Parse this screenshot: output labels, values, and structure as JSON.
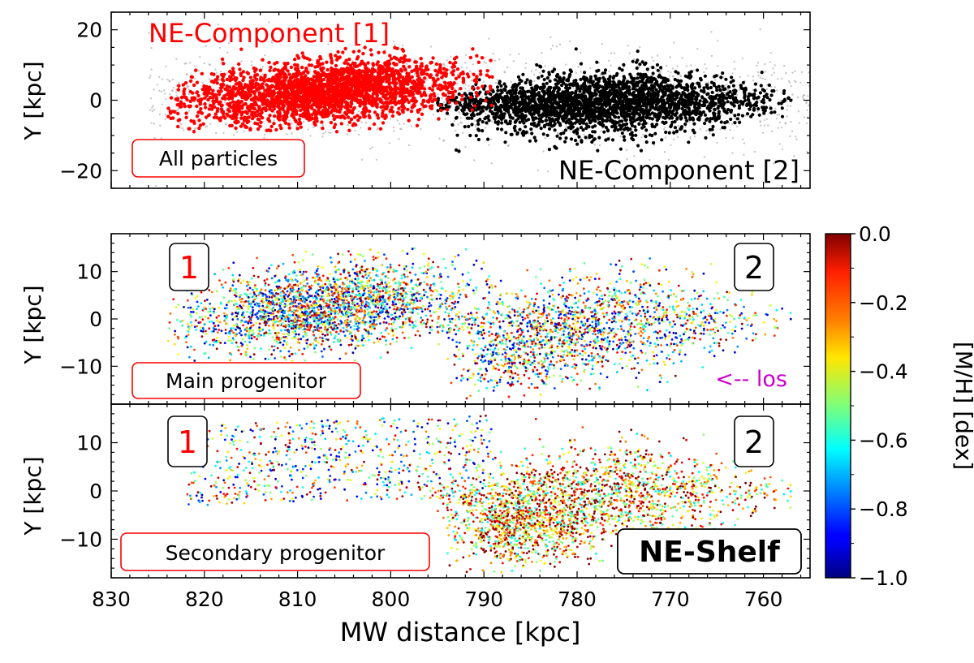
{
  "figure": {
    "xlabel": "MW distance [kpc]",
    "x_ticks": [
      "830",
      "820",
      "810",
      "800",
      "790",
      "780",
      "770",
      "760"
    ]
  },
  "colorbar": {
    "label": "[M/H] [dex]",
    "ticks": [
      "0.0",
      "−0.2",
      "−0.4",
      "−0.6",
      "−0.8",
      "−1.0"
    ],
    "range": [
      -1.0,
      0.0
    ],
    "colormap": "jet"
  },
  "panels": {
    "top": {
      "ylabel": "Y [kpc]",
      "y_ticks": [
        "20",
        "0",
        "−20"
      ],
      "title_red": "NE-Component [1]",
      "title_black": "NE-Component [2]",
      "box_label": "All particles"
    },
    "middle": {
      "ylabel": "Y [kpc]",
      "y_ticks": [
        "10",
        "0",
        "−10"
      ],
      "marker1": "1",
      "marker2": "2",
      "box_label": "Main progenitor",
      "los_label": "<-- los"
    },
    "bottom": {
      "ylabel": "Y [kpc]",
      "y_ticks": [
        "10",
        "0",
        "−10"
      ],
      "marker1": "1",
      "marker2": "2",
      "box_label": "Secondary progenitor",
      "shelf_label": "NE-Shelf"
    }
  },
  "chart_data": {
    "type": "scatter",
    "xlabel": "MW distance [kpc]",
    "ylabel": "Y [kpc]",
    "x_axis_inverted": true,
    "xlim": [
      830,
      755
    ],
    "panels": [
      {
        "name": "All particles",
        "ylim": [
          -25,
          25
        ],
        "series": [
          {
            "name": "NE-Component [1]",
            "color": "#ff0000",
            "extent_x": [
              824,
              789
            ],
            "extent_y": [
              -8,
              15
            ],
            "center": [
              807,
              3
            ]
          },
          {
            "name": "NE-Component [2]",
            "color": "#000000",
            "extent_x": [
              795,
              757
            ],
            "extent_y": [
              -15,
              9
            ],
            "center": [
              776,
              -1
            ]
          }
        ],
        "background_color": "#999999"
      },
      {
        "name": "Main progenitor",
        "ylim": [
          -18,
          18
        ],
        "color_by": "[M/H] [dex]",
        "clumps": [
          {
            "label": "1",
            "extent_x": [
              824,
              789
            ],
            "extent_y": [
              -8,
              15
            ]
          },
          {
            "label": "2",
            "extent_x": [
              795,
              757
            ],
            "extent_y": [
              -15,
              9
            ]
          }
        ]
      },
      {
        "name": "Secondary progenitor",
        "ylim": [
          -18,
          18
        ],
        "color_by": "[M/H] [dex]",
        "clumps": [
          {
            "label": "1",
            "extent_x": [
              822,
              789
            ],
            "extent_y": [
              -8,
              15
            ],
            "density": "sparse"
          },
          {
            "label": "2",
            "extent_x": [
              795,
              757
            ],
            "extent_y": [
              -17,
              9
            ],
            "density": "dense",
            "name": "NE-Shelf"
          }
        ]
      }
    ]
  }
}
